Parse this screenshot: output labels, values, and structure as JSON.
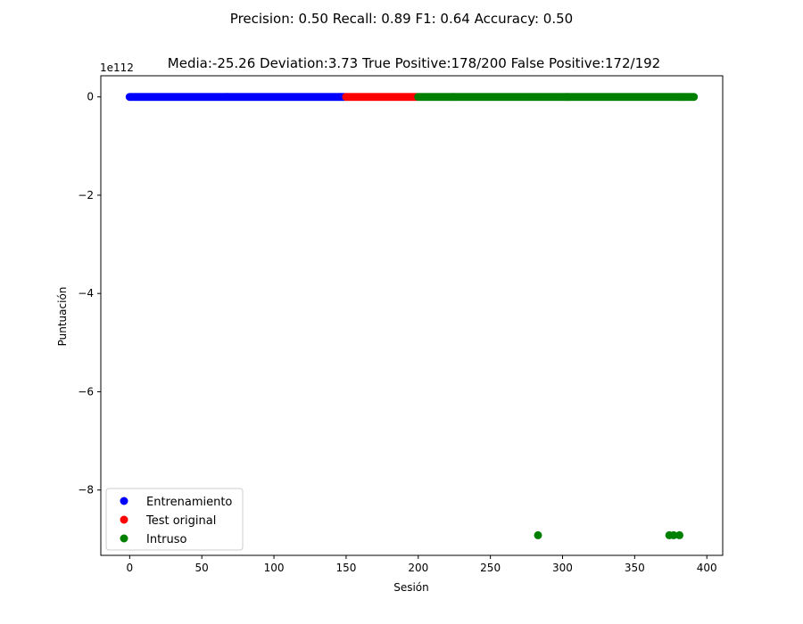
{
  "figure": {
    "suptitle": "Precision: 0.50 Recall: 0.89 F1: 0.64 Accuracy: 0.50"
  },
  "chart_data": {
    "type": "scatter",
    "title": "Media:-25.26 Deviation:3.73 True Positive:178/200 False Positive:172/192",
    "xlabel": "Sesión",
    "ylabel": "Puntuación",
    "y_offset_label": "1e112",
    "xlim": [
      -20,
      411
    ],
    "ylim": [
      -9.33,
      0.43
    ],
    "xticks": [
      0,
      50,
      100,
      150,
      200,
      250,
      300,
      350,
      400
    ],
    "yticks": [
      0,
      -2,
      -4,
      -6,
      -8
    ],
    "ytick_labels": [
      "0",
      "−2",
      "−4",
      "−6",
      "−8"
    ],
    "grid": false,
    "legend_position": "lower-left",
    "series": [
      {
        "name": "Entrenamiento",
        "color": "#0000ff",
        "x_range": [
          0,
          149
        ],
        "y": 0,
        "outliers": []
      },
      {
        "name": "Test original",
        "color": "#ff0000",
        "x_range": [
          150,
          199
        ],
        "y": 0,
        "outliers": []
      },
      {
        "name": "Intruso",
        "color": "#008000",
        "x_range": [
          200,
          391
        ],
        "y": 0,
        "outliers": [
          {
            "x": 283,
            "y": -8.92
          },
          {
            "x": 374,
            "y": -8.92
          },
          {
            "x": 377,
            "y": -8.92
          },
          {
            "x": 381,
            "y": -8.92
          }
        ]
      }
    ]
  }
}
